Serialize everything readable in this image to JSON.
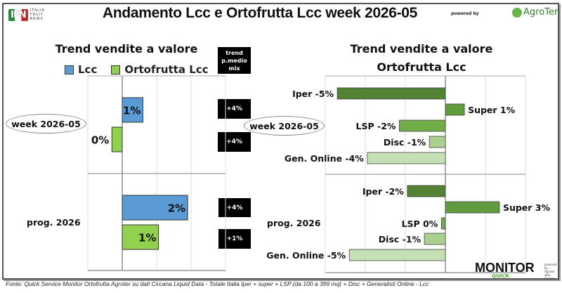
{
  "header": {
    "title": "Andamento Lcc e Ortofrutta Lcc week 2026-05",
    "logo_left": "IFN ITALIA FRUIT NEWS",
    "powered_by": "powered by",
    "logo_right": "AgroTer"
  },
  "left": {
    "title": "Trend vendite a valore",
    "legend": [
      "Lcc",
      "Ortofrutta Lcc"
    ],
    "mix_header": "trend p.medio mix",
    "groups": [
      "week 2026-05",
      "prog. 2026"
    ],
    "mix_values": [
      "+4%",
      "+4%",
      "+4%",
      "+1%"
    ]
  },
  "right": {
    "title_line1": "Trend vendite a valore",
    "title_line2": "Ortofrutta Lcc",
    "groups": [
      "week 2026-05",
      "prog. 2026"
    ]
  },
  "footer": {
    "source": "Fonte: Quick Service Monitor Ortofrutta Agroter su dati Circana Liquid Data - Totale Italia Iper + super + LSP (da 100 a 399 mq) + Disc + Generalisti Online - Lcc",
    "brand": "MONITOR",
    "brand_sub": "QUICK",
    "brand_side": "powered by Agroter with Circana"
  },
  "chart_data": [
    {
      "type": "bar",
      "orientation": "horizontal",
      "title": "Trend vendite a valore",
      "categories": [
        "week 2026-05",
        "prog. 2026"
      ],
      "series": [
        {
          "name": "Lcc",
          "values": [
            0.6,
            1.9
          ],
          "labels": [
            "1%",
            "2%"
          ],
          "color": "#5b9bd5"
        },
        {
          "name": "Ortofrutta Lcc",
          "values": [
            -0.3,
            1.05
          ],
          "labels": [
            "0%",
            "1%"
          ],
          "color": "#92d050"
        }
      ],
      "xlim": [
        -1,
        3
      ],
      "grid": true
    },
    {
      "type": "bar",
      "orientation": "horizontal",
      "title": "Trend vendite a valore Ortofrutta Lcc",
      "categories": [
        "week 2026-05",
        "prog. 2026"
      ],
      "channels": [
        "Iper",
        "Super",
        "LSP",
        "Disc",
        "Gen. Online"
      ],
      "colors": [
        "#548235",
        "#5f9c3c",
        "#70ad47",
        "#a9d08e",
        "#c5e0b4"
      ],
      "groups": [
        {
          "name": "week 2026-05",
          "values": [
            -5.4,
            0.95,
            -2.3,
            -0.8,
            -3.9
          ],
          "labels": [
            "Iper -5%",
            "Super 1%",
            "LSP -2%",
            "Disc -1%",
            "Gen. Online -4%"
          ]
        },
        {
          "name": "prog. 2026",
          "values": [
            -1.9,
            2.7,
            -0.2,
            -1.05,
            -4.8
          ],
          "labels": [
            "Iper -2%",
            "Super 3%",
            "LSP 0%",
            "Disc -1%",
            "Gen. Online -5%"
          ]
        }
      ],
      "xlim": [
        -6,
        4
      ],
      "grid": true
    }
  ]
}
